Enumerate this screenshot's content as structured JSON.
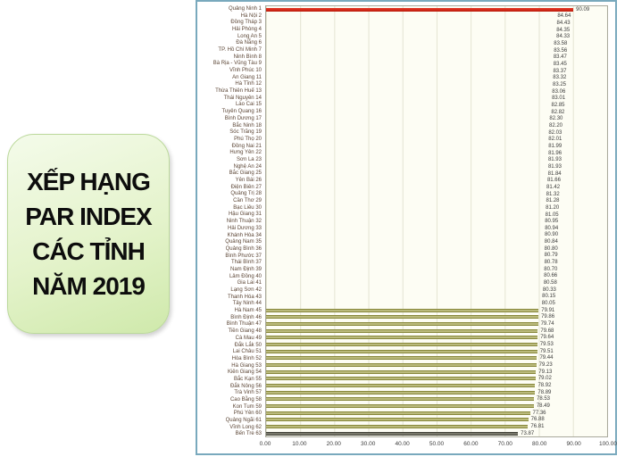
{
  "side_card": {
    "lines": [
      "XẾP HẠNG",
      "PAR INDEX",
      "CÁC TỈNH",
      "NĂM 2019"
    ],
    "bg_top": "#f4fbea",
    "bg_bottom": "#cfe9ab",
    "border_color": "#bcd99c"
  },
  "panel": {
    "border_color": "#79a9bd",
    "plot_bg": "#fdfdf4",
    "gridline_color": "#e4e4d2"
  },
  "chart_data": {
    "type": "bar",
    "orientation": "horizontal",
    "xlim": [
      0,
      100
    ],
    "grid": true,
    "x_ticks": [
      "0.00",
      "10.00",
      "20.00",
      "30.00",
      "40.00",
      "50.00",
      "60.00",
      "70.00",
      "80.00",
      "90.00",
      "100.00"
    ],
    "colors": {
      "red": "#d42818",
      "green": "#2d5e42",
      "olive": "#8a8a40",
      "dark": "#3c3c30"
    },
    "bars": [
      {
        "label": "Quảng Ninh 1",
        "value": 90.09,
        "display": "90.09",
        "color": "red"
      },
      {
        "label": "Hà Nội 2",
        "value": 84.64,
        "display": "84.64",
        "color": "green"
      },
      {
        "label": "Đồng Tháp 3",
        "value": 84.43,
        "display": "84.43",
        "color": "green"
      },
      {
        "label": "Hải Phòng 4",
        "value": 84.35,
        "display": "84.35",
        "color": "green"
      },
      {
        "label": "Long An 5",
        "value": 84.33,
        "display": "84.33",
        "color": "green"
      },
      {
        "label": "Đà Nẵng 6",
        "value": 83.58,
        "display": "83.58",
        "color": "green"
      },
      {
        "label": "TP. Hồ Chí Minh 7",
        "value": 83.56,
        "display": "83.56",
        "color": "green"
      },
      {
        "label": "Ninh Bình 8",
        "value": 83.47,
        "display": "83.47",
        "color": "green"
      },
      {
        "label": "Bà Rịa - Vũng Tàu 9",
        "value": 83.45,
        "display": "83.45",
        "color": "green"
      },
      {
        "label": "Vĩnh Phúc 10",
        "value": 83.37,
        "display": "83.37",
        "color": "green"
      },
      {
        "label": "An Giang 11",
        "value": 83.32,
        "display": "83.32",
        "color": "green"
      },
      {
        "label": "Hà Tĩnh 12",
        "value": 83.25,
        "display": "83.25",
        "color": "green"
      },
      {
        "label": "Thừa Thiên Huế 13",
        "value": 83.06,
        "display": "83.06",
        "color": "green"
      },
      {
        "label": "Thái Nguyên 14",
        "value": 83.01,
        "display": "83.01",
        "color": "green"
      },
      {
        "label": "Lào Cai 15",
        "value": 82.85,
        "display": "82.85",
        "color": "green"
      },
      {
        "label": "Tuyên Quang 16",
        "value": 82.82,
        "display": "82.82",
        "color": "green"
      },
      {
        "label": "Bình Dương 17",
        "value": 82.3,
        "display": "82.30",
        "color": "green"
      },
      {
        "label": "Bắc Ninh 18",
        "value": 82.2,
        "display": "82.20",
        "color": "green"
      },
      {
        "label": "Sóc Trăng 19",
        "value": 82.03,
        "display": "82.03",
        "color": "green"
      },
      {
        "label": "Phú Thọ 20",
        "value": 82.01,
        "display": "82.01",
        "color": "green"
      },
      {
        "label": "Đồng Nai 21",
        "value": 81.99,
        "display": "81.99",
        "color": "green"
      },
      {
        "label": "Hưng Yên 22",
        "value": 81.96,
        "display": "81.96",
        "color": "green"
      },
      {
        "label": "Sơn La 23",
        "value": 81.93,
        "display": "81.93",
        "color": "green"
      },
      {
        "label": "Nghệ An 24",
        "value": 81.93,
        "display": "81.93",
        "color": "green"
      },
      {
        "label": "Bắc Giang 25",
        "value": 81.84,
        "display": "81.84",
        "color": "green"
      },
      {
        "label": "Yên Bái 26",
        "value": 81.66,
        "display": "81.66",
        "color": "green"
      },
      {
        "label": "Điện Biên 27",
        "value": 81.42,
        "display": "81.42",
        "color": "green"
      },
      {
        "label": "Quảng Trị 28",
        "value": 81.32,
        "display": "81.32",
        "color": "green"
      },
      {
        "label": "Cần Thơ 29",
        "value": 81.28,
        "display": "81.28",
        "color": "green"
      },
      {
        "label": "Bạc Liêu 30",
        "value": 81.2,
        "display": "81.20",
        "color": "green"
      },
      {
        "label": "Hậu Giang 31",
        "value": 81.05,
        "display": "81.05",
        "color": "green"
      },
      {
        "label": "Ninh Thuận 32",
        "value": 80.95,
        "display": "80.95",
        "color": "green"
      },
      {
        "label": "Hải Dương 33",
        "value": 80.94,
        "display": "80.94",
        "color": "green"
      },
      {
        "label": "Khánh Hòa 34",
        "value": 80.9,
        "display": "80.90",
        "color": "green"
      },
      {
        "label": "Quảng Nam 35",
        "value": 80.84,
        "display": "80.84",
        "color": "green"
      },
      {
        "label": "Quảng Bình 36",
        "value": 80.8,
        "display": "80.80",
        "color": "green"
      },
      {
        "label": "Bình Phước 37",
        "value": 80.79,
        "display": "80.79",
        "color": "green"
      },
      {
        "label": "Thái Bình 37",
        "value": 80.78,
        "display": "80.78",
        "color": "green"
      },
      {
        "label": "Nam Định 39",
        "value": 80.7,
        "display": "80.70",
        "color": "green"
      },
      {
        "label": "Lâm Đồng 40",
        "value": 80.66,
        "display": "80.66",
        "color": "green"
      },
      {
        "label": "Gia Lai 41",
        "value": 80.58,
        "display": "80.58",
        "color": "green"
      },
      {
        "label": "Lạng Sơn 42",
        "value": 80.33,
        "display": "80.33",
        "color": "green"
      },
      {
        "label": "Thanh Hóa 43",
        "value": 80.15,
        "display": "80.15",
        "color": "green"
      },
      {
        "label": "Tây Ninh 44",
        "value": 80.05,
        "display": "80.05",
        "color": "green"
      },
      {
        "label": "Hà Nam 45",
        "value": 79.91,
        "display": "79.91",
        "color": "olive"
      },
      {
        "label": "Bình Định 46",
        "value": 79.86,
        "display": "79.86",
        "color": "olive"
      },
      {
        "label": "Bình Thuận 47",
        "value": 79.74,
        "display": "79.74",
        "color": "olive"
      },
      {
        "label": "Tiền Giang 48",
        "value": 79.68,
        "display": "79.68",
        "color": "olive"
      },
      {
        "label": "Cà Mau 49",
        "value": 79.64,
        "display": "79.64",
        "color": "olive"
      },
      {
        "label": "Đắk Lắk 50",
        "value": 79.53,
        "display": "79.53",
        "color": "olive"
      },
      {
        "label": "Lai Châu 51",
        "value": 79.51,
        "display": "79.51",
        "color": "olive"
      },
      {
        "label": "Hòa Bình 52",
        "value": 79.44,
        "display": "79.44",
        "color": "olive"
      },
      {
        "label": "Hà Giang 53",
        "value": 79.23,
        "display": "79.23",
        "color": "olive"
      },
      {
        "label": "Kiên Giang 54",
        "value": 79.13,
        "display": "79.13",
        "color": "olive"
      },
      {
        "label": "Bắc Kạn 55",
        "value": 79.02,
        "display": "79.02",
        "color": "olive"
      },
      {
        "label": "Đắk Nông 56",
        "value": 78.92,
        "display": "78.92",
        "color": "olive"
      },
      {
        "label": "Trà Vinh 57",
        "value": 78.89,
        "display": "78.89",
        "color": "olive"
      },
      {
        "label": "Cao Bằng 58",
        "value": 78.53,
        "display": "78.53",
        "color": "olive"
      },
      {
        "label": "Kon Tum 59",
        "value": 78.49,
        "display": "78.49",
        "color": "olive"
      },
      {
        "label": "Phú Yên 60",
        "value": 77.36,
        "display": "77.36",
        "color": "olive"
      },
      {
        "label": "Quảng Ngãi 61",
        "value": 76.88,
        "display": "76.88",
        "color": "olive"
      },
      {
        "label": "Vĩnh Long 62",
        "value": 76.81,
        "display": "76.81",
        "color": "olive"
      },
      {
        "label": "Bến Tre 63",
        "value": 73.87,
        "display": "73.87",
        "color": "dark"
      }
    ]
  }
}
